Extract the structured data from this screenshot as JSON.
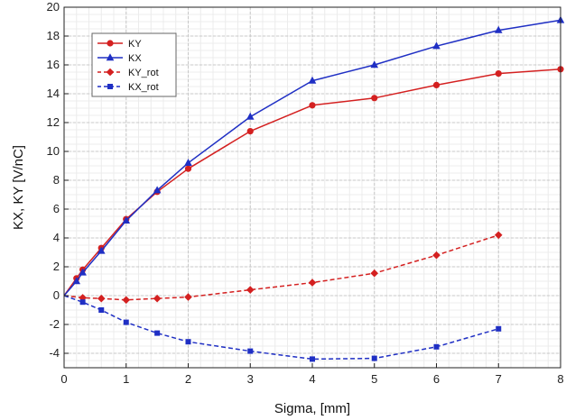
{
  "chart_data": {
    "type": "line",
    "title": "",
    "xlabel": "Sigma, [mm]",
    "ylabel": "KX, KY [V/nC]",
    "xlim": [
      0,
      8
    ],
    "ylim": [
      -5,
      20
    ],
    "xticks": [
      0,
      1,
      2,
      3,
      4,
      5,
      6,
      7,
      8
    ],
    "yticks": [
      -4,
      -2,
      0,
      2,
      4,
      6,
      8,
      10,
      12,
      14,
      16,
      18,
      20
    ],
    "grid": true,
    "minor_grid": true,
    "legend_position": "top-left",
    "series": [
      {
        "name": "KY",
        "color": "#d42020",
        "line_style": "solid",
        "marker": "circle",
        "points": [
          [
            0,
            0
          ],
          [
            0.2,
            1.2
          ],
          [
            0.3,
            1.8
          ],
          [
            0.6,
            3.3
          ],
          [
            1,
            5.3
          ],
          [
            1.5,
            7.2
          ],
          [
            2,
            8.8
          ],
          [
            3,
            11.4
          ],
          [
            4,
            13.2
          ],
          [
            5,
            13.7
          ],
          [
            6,
            14.6
          ],
          [
            7,
            15.4
          ],
          [
            8,
            15.7
          ]
        ]
      },
      {
        "name": "KX",
        "color": "#1f2fc4",
        "line_style": "solid",
        "marker": "triangle",
        "points": [
          [
            0,
            0
          ],
          [
            0.2,
            1.0
          ],
          [
            0.3,
            1.6
          ],
          [
            0.6,
            3.1
          ],
          [
            1,
            5.2
          ],
          [
            1.5,
            7.3
          ],
          [
            2,
            9.2
          ],
          [
            3,
            12.4
          ],
          [
            4,
            14.9
          ],
          [
            5,
            16.0
          ],
          [
            6,
            17.3
          ],
          [
            7,
            18.4
          ],
          [
            8,
            19.1
          ]
        ]
      },
      {
        "name": "KY_rot",
        "color": "#d42020",
        "line_style": "dashed",
        "marker": "diamond",
        "points": [
          [
            0,
            0
          ],
          [
            0.3,
            -0.15
          ],
          [
            0.6,
            -0.2
          ],
          [
            1,
            -0.3
          ],
          [
            1.5,
            -0.2
          ],
          [
            2,
            -0.1
          ],
          [
            3,
            0.4
          ],
          [
            4,
            0.9
          ],
          [
            5,
            1.55
          ],
          [
            6,
            2.8
          ],
          [
            7,
            4.2
          ]
        ]
      },
      {
        "name": "KX_rot",
        "color": "#1f2fc4",
        "line_style": "dashed",
        "marker": "square",
        "points": [
          [
            0,
            0
          ],
          [
            0.3,
            -0.45
          ],
          [
            0.6,
            -1.0
          ],
          [
            1,
            -1.85
          ],
          [
            1.5,
            -2.6
          ],
          [
            2,
            -3.2
          ],
          [
            3,
            -3.85
          ],
          [
            4,
            -4.4
          ],
          [
            5,
            -4.35
          ],
          [
            6,
            -3.55
          ],
          [
            7,
            -2.3
          ]
        ]
      }
    ]
  }
}
